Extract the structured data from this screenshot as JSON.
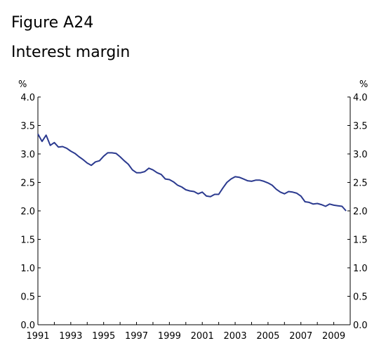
{
  "figure": {
    "label": "Figure A24",
    "title": "Interest margin"
  },
  "chart_data": {
    "type": "line",
    "title": "Interest margin",
    "ylabel_left": "%",
    "ylabel_right": "%",
    "ylim": [
      0,
      4
    ],
    "yticks": [
      "0.0",
      "0.5",
      "1.0",
      "1.5",
      "2.0",
      "2.5",
      "3.0",
      "3.5",
      "4.0"
    ],
    "xlim": [
      1991,
      2010
    ],
    "xticks": [
      "1991",
      "1993",
      "1995",
      "1997",
      "1999",
      "2001",
      "2003",
      "2005",
      "2007",
      "2009"
    ],
    "grid": false,
    "line_color": "#2b3a8f",
    "series": [
      {
        "x": [
          1991.0,
          1991.25,
          1991.5,
          1991.75,
          1992.0,
          1992.25,
          1992.5,
          1992.75,
          1993.0,
          1993.25,
          1993.5,
          1993.75,
          1994.0,
          1994.25,
          1994.5,
          1994.75,
          1995.0,
          1995.25,
          1995.5,
          1995.75,
          1996.0,
          1996.25,
          1996.5,
          1996.75,
          1997.0,
          1997.25,
          1997.5,
          1997.75,
          1998.0,
          1998.25,
          1998.5,
          1998.75,
          1999.0,
          1999.25,
          1999.5,
          1999.75,
          2000.0,
          2000.25,
          2000.5,
          2000.75,
          2001.0,
          2001.25,
          2001.5,
          2001.75,
          2002.0,
          2002.25,
          2002.5,
          2002.75,
          2003.0,
          2003.25,
          2003.5,
          2003.75,
          2004.0,
          2004.25,
          2004.5,
          2004.75,
          2005.0,
          2005.25,
          2005.5,
          2005.75,
          2006.0,
          2006.25,
          2006.5,
          2006.75,
          2007.0,
          2007.25,
          2007.5,
          2007.75,
          2008.0,
          2008.25,
          2008.5,
          2008.75,
          2009.0,
          2009.25,
          2009.5,
          2009.75
        ],
        "y": [
          3.35,
          3.22,
          3.33,
          3.15,
          3.2,
          3.12,
          3.13,
          3.1,
          3.05,
          3.01,
          2.95,
          2.9,
          2.84,
          2.8,
          2.86,
          2.88,
          2.96,
          3.02,
          3.02,
          3.01,
          2.95,
          2.88,
          2.82,
          2.72,
          2.67,
          2.67,
          2.69,
          2.75,
          2.72,
          2.67,
          2.64,
          2.56,
          2.55,
          2.51,
          2.45,
          2.42,
          2.37,
          2.35,
          2.34,
          2.3,
          2.33,
          2.26,
          2.25,
          2.29,
          2.29,
          2.4,
          2.5,
          2.56,
          2.6,
          2.59,
          2.56,
          2.53,
          2.52,
          2.54,
          2.54,
          2.52,
          2.49,
          2.45,
          2.38,
          2.33,
          2.3,
          2.34,
          2.33,
          2.31,
          2.26,
          2.16,
          2.15,
          2.12,
          2.13,
          2.11,
          2.08,
          2.12,
          2.1,
          2.09,
          2.08,
          2.0
        ]
      }
    ]
  }
}
